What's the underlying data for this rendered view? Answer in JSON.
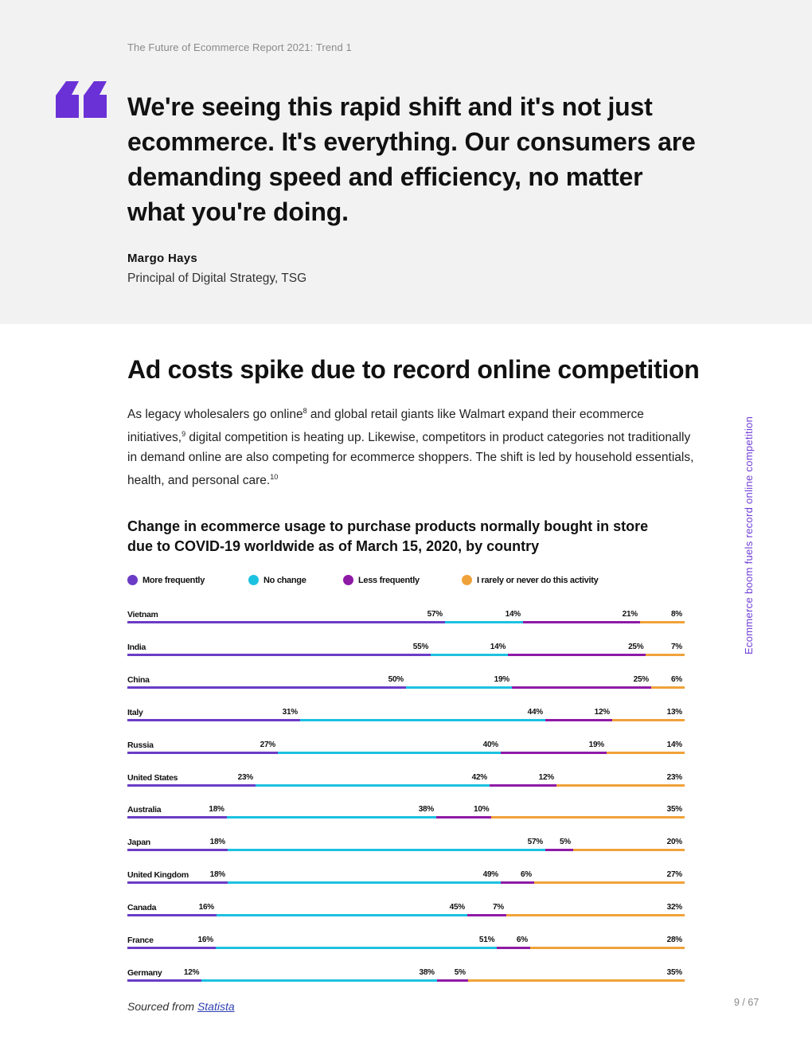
{
  "header": {
    "running_head": "The Future of Ecommerce Report 2021: Trend 1"
  },
  "quote": {
    "icon": "quote-icon",
    "text": "We're seeing this rapid shift and it's not just ecommerce. It's everything. Our consumers are demanding speed and efficiency, no matter what you're doing.",
    "author": "Margo Hays",
    "role": "Principal of Digital Strategy, TSG"
  },
  "section": {
    "title": "Ad costs spike due to record online competition",
    "body": {
      "p1": "As legacy wholesalers go online",
      "ref1": "8",
      "p2": " and global retail giants like Walmart expand their ecommerce initiatives,",
      "ref2": "9",
      "p3": " digital competition is heating up. Likewise, competitors in product categories not traditionally in demand online are also competing for ecommerce shoppers. The shift is led by household essentials, health, and personal care.",
      "ref3": "10"
    }
  },
  "chart_data": {
    "type": "bar",
    "stacked": true,
    "orientation": "horizontal",
    "title": "Change in ecommerce usage to purchase products normally bought in store due to COVID-19 worldwide as of March 15, 2020, by country",
    "legend_position": "top",
    "series": [
      {
        "name": "More frequently",
        "color": "#6a3cc6"
      },
      {
        "name": "No change",
        "color": "#1dc1e0"
      },
      {
        "name": "Less frequently",
        "color": "#8e1aa6"
      },
      {
        "name": "I rarely or never do this activity",
        "color": "#f0a23a"
      }
    ],
    "rows": [
      {
        "country": "Vietnam",
        "values": [
          57,
          14,
          21,
          8
        ]
      },
      {
        "country": "India",
        "values": [
          55,
          14,
          25,
          7
        ]
      },
      {
        "country": "China",
        "values": [
          50,
          19,
          25,
          6
        ]
      },
      {
        "country": "Italy",
        "values": [
          31,
          44,
          12,
          13
        ]
      },
      {
        "country": "Russia",
        "values": [
          27,
          40,
          19,
          14
        ]
      },
      {
        "country": "United States",
        "values": [
          23,
          42,
          12,
          23
        ]
      },
      {
        "country": "Australia",
        "values": [
          18,
          38,
          10,
          35
        ]
      },
      {
        "country": "Japan",
        "values": [
          18,
          57,
          5,
          20
        ]
      },
      {
        "country": "United Kingdom",
        "values": [
          18,
          49,
          6,
          27
        ]
      },
      {
        "country": "Canada",
        "values": [
          16,
          45,
          7,
          32
        ]
      },
      {
        "country": "France",
        "values": [
          16,
          51,
          6,
          28
        ]
      },
      {
        "country": "Germany",
        "values": [
          12,
          38,
          5,
          35
        ]
      }
    ],
    "unit": "%"
  },
  "source": {
    "prefix": "Sourced from",
    "link": "Statista"
  },
  "side_label": "Ecommerce boom fuels record online competition",
  "page_number": "9 / 67"
}
